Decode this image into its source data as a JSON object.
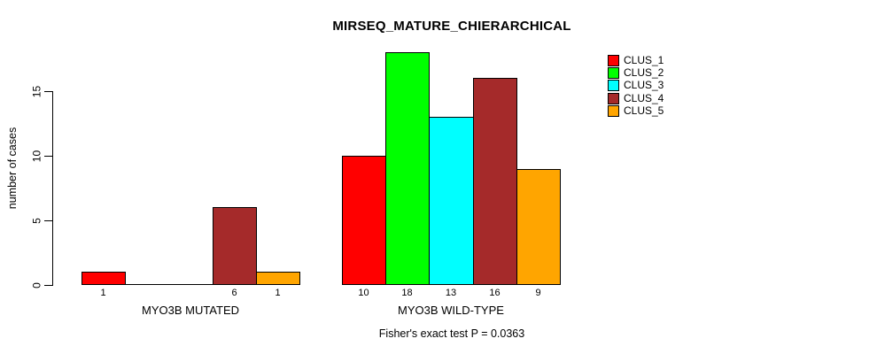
{
  "chart_data": {
    "type": "bar",
    "title": "MIRSEQ_MATURE_CHIERARCHICAL",
    "ylabel": "number of cases",
    "xlabel": "",
    "footnote": "Fisher's exact test P = 0.0363",
    "yticks": [
      0,
      5,
      10,
      15
    ],
    "ylim": [
      0,
      18
    ],
    "grid": false,
    "legend_position": "right-outside",
    "categories": [
      "MYO3B MUTATED",
      "MYO3B WILD-TYPE"
    ],
    "series": [
      {
        "name": "CLUS_1",
        "color": "#ff0000",
        "values": [
          1,
          10
        ]
      },
      {
        "name": "CLUS_2",
        "color": "#00ff00",
        "values": [
          0,
          18
        ]
      },
      {
        "name": "CLUS_3",
        "color": "#00ffff",
        "values": [
          0,
          13
        ]
      },
      {
        "name": "CLUS_4",
        "color": "#a52a2a",
        "values": [
          6,
          16
        ]
      },
      {
        "name": "CLUS_5",
        "color": "#ffa500",
        "values": [
          1,
          9
        ]
      }
    ]
  }
}
